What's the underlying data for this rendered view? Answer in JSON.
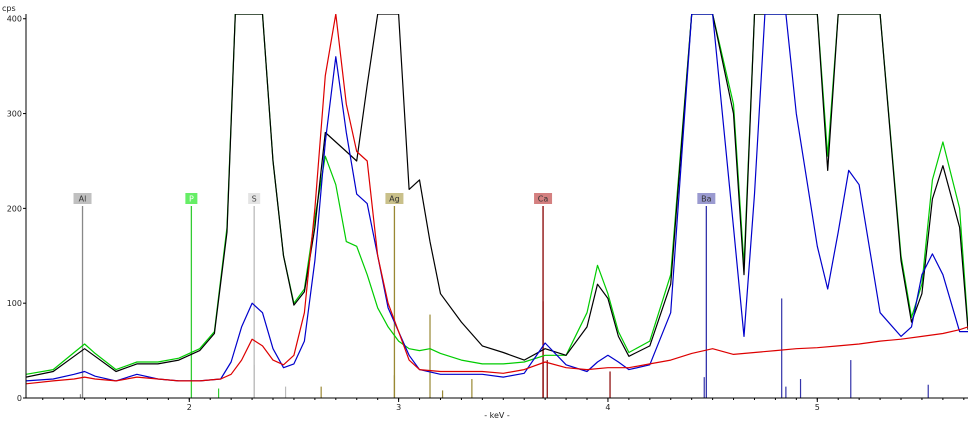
{
  "chart_data": {
    "type": "line",
    "y_unit": "cps",
    "x_unit": "- keV -",
    "xlim": [
      1.22,
      5.72
    ],
    "ylim": [
      0,
      405
    ],
    "x_ticks": [
      "2",
      "3",
      "4",
      "5"
    ],
    "x_tick_values": [
      2,
      3,
      4,
      5
    ],
    "y_ticks": [
      "0",
      "100",
      "200",
      "300",
      "400"
    ],
    "y_tick_values": [
      0,
      100,
      200,
      300,
      400
    ],
    "grid": false,
    "series": [
      {
        "color": "#00cc00",
        "x": [
          1.22,
          1.35,
          1.45,
          1.5,
          1.55,
          1.65,
          1.75,
          1.85,
          1.95,
          2.05,
          2.12,
          2.18,
          2.22,
          2.25,
          2.3,
          2.35,
          2.4,
          2.45,
          2.5,
          2.55,
          2.6,
          2.65,
          2.7,
          2.75,
          2.8,
          2.85,
          2.9,
          2.95,
          3.0,
          3.05,
          3.1,
          3.15,
          3.2,
          3.3,
          3.4,
          3.5,
          3.6,
          3.7,
          3.8,
          3.9,
          3.95,
          4.0,
          4.05,
          4.1,
          4.2,
          4.3,
          4.4,
          4.45,
          4.5,
          4.6,
          4.65,
          4.7,
          4.8,
          4.9,
          5.0,
          5.05,
          5.1,
          5.2,
          5.3,
          5.4,
          5.45,
          5.5,
          5.55,
          5.6,
          5.68,
          5.72
        ],
        "y": [
          25,
          30,
          48,
          57,
          47,
          30,
          38,
          38,
          42,
          52,
          70,
          180,
          405,
          405,
          405,
          405,
          250,
          150,
          100,
          115,
          190,
          255,
          225,
          165,
          160,
          130,
          95,
          75,
          60,
          52,
          50,
          52,
          47,
          40,
          36,
          36,
          38,
          45,
          45,
          90,
          140,
          110,
          70,
          48,
          60,
          130,
          405,
          405,
          405,
          310,
          140,
          405,
          405,
          405,
          405,
          255,
          405,
          405,
          405,
          150,
          85,
          120,
          230,
          270,
          200,
          75
        ]
      },
      {
        "color": "#000000",
        "x": [
          1.22,
          1.35,
          1.45,
          1.5,
          1.55,
          1.65,
          1.75,
          1.85,
          1.95,
          2.05,
          2.12,
          2.18,
          2.22,
          2.25,
          2.3,
          2.35,
          2.4,
          2.45,
          2.5,
          2.55,
          2.6,
          2.65,
          2.7,
          2.75,
          2.8,
          2.85,
          2.9,
          2.95,
          3.0,
          3.05,
          3.1,
          3.15,
          3.2,
          3.3,
          3.4,
          3.5,
          3.6,
          3.7,
          3.8,
          3.9,
          3.95,
          4.0,
          4.05,
          4.1,
          4.2,
          4.3,
          4.4,
          4.45,
          4.5,
          4.6,
          4.65,
          4.7,
          4.8,
          4.9,
          5.0,
          5.05,
          5.1,
          5.2,
          5.3,
          5.4,
          5.45,
          5.5,
          5.55,
          5.6,
          5.68,
          5.72
        ],
        "y": [
          22,
          28,
          44,
          52,
          44,
          28,
          36,
          36,
          40,
          50,
          68,
          175,
          405,
          405,
          405,
          405,
          250,
          150,
          98,
          112,
          180,
          280,
          270,
          260,
          250,
          330,
          405,
          405,
          405,
          220,
          230,
          165,
          110,
          80,
          55,
          48,
          40,
          52,
          45,
          75,
          120,
          105,
          65,
          44,
          55,
          120,
          405,
          405,
          405,
          300,
          130,
          405,
          405,
          405,
          405,
          240,
          405,
          405,
          405,
          145,
          80,
          110,
          210,
          245,
          180,
          72
        ]
      },
      {
        "color": "#0000cc",
        "x": [
          1.22,
          1.35,
          1.45,
          1.5,
          1.55,
          1.65,
          1.75,
          1.85,
          1.95,
          2.05,
          2.15,
          2.2,
          2.25,
          2.3,
          2.35,
          2.4,
          2.45,
          2.5,
          2.55,
          2.6,
          2.65,
          2.7,
          2.75,
          2.8,
          2.85,
          2.9,
          2.95,
          3.0,
          3.05,
          3.1,
          3.2,
          3.3,
          3.4,
          3.5,
          3.6,
          3.7,
          3.8,
          3.9,
          3.95,
          4.0,
          4.05,
          4.1,
          4.2,
          4.3,
          4.4,
          4.45,
          4.5,
          4.6,
          4.65,
          4.7,
          4.75,
          4.8,
          4.85,
          4.9,
          5.0,
          5.05,
          5.1,
          5.15,
          5.2,
          5.3,
          5.4,
          5.45,
          5.5,
          5.55,
          5.6,
          5.68,
          5.72
        ],
        "y": [
          18,
          20,
          25,
          28,
          23,
          18,
          25,
          20,
          18,
          18,
          20,
          38,
          75,
          100,
          90,
          52,
          32,
          36,
          60,
          145,
          270,
          360,
          280,
          215,
          205,
          150,
          95,
          70,
          45,
          30,
          25,
          25,
          25,
          22,
          26,
          58,
          35,
          28,
          38,
          45,
          38,
          30,
          35,
          90,
          405,
          405,
          405,
          180,
          65,
          215,
          405,
          405,
          405,
          300,
          160,
          115,
          175,
          240,
          225,
          90,
          65,
          75,
          130,
          152,
          130,
          70,
          70
        ]
      },
      {
        "color": "#dd0000",
        "x": [
          1.22,
          1.35,
          1.45,
          1.5,
          1.55,
          1.65,
          1.75,
          1.85,
          1.95,
          2.05,
          2.15,
          2.2,
          2.25,
          2.3,
          2.35,
          2.4,
          2.45,
          2.5,
          2.55,
          2.6,
          2.65,
          2.7,
          2.75,
          2.8,
          2.85,
          2.9,
          2.95,
          3.0,
          3.05,
          3.1,
          3.2,
          3.3,
          3.4,
          3.5,
          3.6,
          3.7,
          3.8,
          3.9,
          4.0,
          4.1,
          4.2,
          4.3,
          4.4,
          4.5,
          4.6,
          4.7,
          4.8,
          4.9,
          5.0,
          5.1,
          5.2,
          5.3,
          5.4,
          5.5,
          5.6,
          5.68,
          5.72
        ],
        "y": [
          15,
          18,
          20,
          22,
          20,
          18,
          22,
          20,
          18,
          18,
          20,
          25,
          40,
          62,
          55,
          40,
          35,
          45,
          90,
          200,
          340,
          405,
          310,
          260,
          250,
          150,
          100,
          70,
          40,
          30,
          28,
          28,
          28,
          26,
          30,
          38,
          32,
          30,
          32,
          32,
          36,
          40,
          47,
          52,
          46,
          48,
          50,
          52,
          53,
          55,
          57,
          60,
          62,
          65,
          68,
          72,
          75
        ]
      }
    ],
    "element_markers": [
      {
        "label": "Al",
        "x": 1.49,
        "color": "#888888",
        "box": "#c0c0c0",
        "text": "#333333"
      },
      {
        "label": "P",
        "x": 2.01,
        "color": "#33cc33",
        "box": "#66ee66",
        "text": "#ffffff"
      },
      {
        "label": "S",
        "x": 2.31,
        "color": "#bbbbbb",
        "box": "#e4e4e4",
        "text": "#444444"
      },
      {
        "label": "Ag",
        "x": 2.98,
        "color": "#998833",
        "box": "#c9c08a",
        "text": "#333333"
      },
      {
        "label": "Ca",
        "x": 3.69,
        "color": "#880000",
        "box": "#d48080",
        "text": "#333333"
      },
      {
        "label": "Ba",
        "x": 4.47,
        "color": "#3333aa",
        "box": "#9a9ad0",
        "text": "#333333"
      }
    ],
    "reference_lines": [
      {
        "x": 1.48,
        "h": 4,
        "color": "#888888"
      },
      {
        "x": 2.14,
        "h": 10,
        "color": "#33cc33"
      },
      {
        "x": 2.31,
        "h": 35,
        "color": "#bbbbbb"
      },
      {
        "x": 2.46,
        "h": 12,
        "color": "#bbbbbb"
      },
      {
        "x": 2.63,
        "h": 12,
        "color": "#998833"
      },
      {
        "x": 2.98,
        "h": 24,
        "color": "#998833"
      },
      {
        "x": 3.15,
        "h": 88,
        "color": "#998833"
      },
      {
        "x": 3.21,
        "h": 8,
        "color": "#998833"
      },
      {
        "x": 3.35,
        "h": 20,
        "color": "#998833"
      },
      {
        "x": 3.69,
        "h": 102,
        "color": "#880000"
      },
      {
        "x": 3.71,
        "h": 40,
        "color": "#880000"
      },
      {
        "x": 4.01,
        "h": 28,
        "color": "#880000"
      },
      {
        "x": 4.46,
        "h": 22,
        "color": "#3333aa"
      },
      {
        "x": 4.83,
        "h": 105,
        "color": "#3333aa"
      },
      {
        "x": 4.85,
        "h": 12,
        "color": "#3333aa"
      },
      {
        "x": 4.92,
        "h": 20,
        "color": "#3333aa"
      },
      {
        "x": 5.16,
        "h": 40,
        "color": "#3333aa"
      },
      {
        "x": 5.53,
        "h": 14,
        "color": "#3333aa"
      }
    ]
  }
}
